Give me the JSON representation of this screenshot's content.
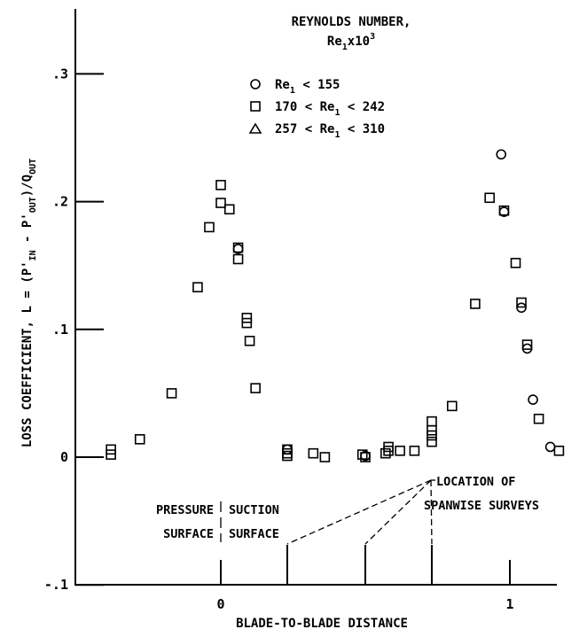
{
  "chart_data": {
    "type": "scatter",
    "xlabel": "BLADE-TO-BLADE DISTANCE",
    "ylabel_parts": {
      "a": "LOSS COEFFICIENT, L = (P'",
      "a_sub": "IN",
      "b": " - P'",
      "b_sub": "OUT",
      "c": ")/Q",
      "c_sub": "OUT"
    },
    "xlim": [
      -0.4,
      1.2
    ],
    "ylim": [
      -0.1,
      0.35
    ],
    "x_ticks": [
      {
        "value": 0,
        "label": "0"
      },
      {
        "value": 1,
        "label": "1"
      }
    ],
    "y_ticks": [
      {
        "value": -0.1,
        "label": "-.1"
      },
      {
        "value": 0,
        "label": "0"
      },
      {
        "value": 0.1,
        "label": ".1"
      },
      {
        "value": 0.2,
        "label": ".2"
      },
      {
        "value": 0.3,
        "label": ".3"
      }
    ],
    "grid": false,
    "legend": {
      "title_line1": "REYNOLDS NUMBER,",
      "title_line2_parts": {
        "a": "Re",
        "sub": "1",
        "b": "x10",
        "sup": "3"
      },
      "position": "top-right",
      "entries": [
        {
          "marker": "circle",
          "parts": {
            "a": "Re",
            "sub": "1",
            "b": " < 155"
          }
        },
        {
          "marker": "square",
          "parts": {
            "a": "170 < Re",
            "sub": "1",
            "b": " < 242"
          }
        },
        {
          "marker": "triangle",
          "parts": {
            "a": "257 < Re",
            "sub": "1",
            "b": " < 310"
          }
        }
      ]
    },
    "series": [
      {
        "name": "Re1 < 155",
        "marker": "circle",
        "points": [
          [
            0.97,
            0.237
          ],
          [
            0.98,
            0.192
          ],
          [
            1.04,
            0.117
          ],
          [
            1.06,
            0.085
          ],
          [
            1.08,
            0.045
          ],
          [
            1.14,
            0.008
          ],
          [
            0.06,
            0.163
          ],
          [
            0.5,
            0.001
          ],
          [
            0.23,
            0.006
          ]
        ]
      },
      {
        "name": "170 < Re1 < 242",
        "marker": "square",
        "points": [
          [
            -0.38,
            0.006
          ],
          [
            -0.38,
            0.002
          ],
          [
            -0.28,
            0.014
          ],
          [
            -0.17,
            0.05
          ],
          [
            -0.08,
            0.133
          ],
          [
            -0.04,
            0.18
          ],
          [
            0.0,
            0.213
          ],
          [
            0.0,
            0.199
          ],
          [
            0.03,
            0.194
          ],
          [
            0.06,
            0.164
          ],
          [
            0.06,
            0.155
          ],
          [
            0.09,
            0.109
          ],
          [
            0.09,
            0.105
          ],
          [
            0.1,
            0.091
          ],
          [
            0.12,
            0.054
          ],
          [
            0.23,
            0.006
          ],
          [
            0.23,
            0.003
          ],
          [
            0.23,
            0.001
          ],
          [
            0.32,
            0.003
          ],
          [
            0.36,
            0.0
          ],
          [
            0.49,
            0.002
          ],
          [
            0.5,
            0.0
          ],
          [
            0.57,
            0.003
          ],
          [
            0.58,
            0.008
          ],
          [
            0.58,
            0.005
          ],
          [
            0.62,
            0.005
          ],
          [
            0.67,
            0.005
          ],
          [
            0.73,
            0.028
          ],
          [
            0.73,
            0.021
          ],
          [
            0.73,
            0.017
          ],
          [
            0.73,
            0.012
          ],
          [
            0.8,
            0.04
          ],
          [
            0.88,
            0.12
          ],
          [
            0.93,
            0.203
          ],
          [
            0.98,
            0.193
          ],
          [
            1.02,
            0.152
          ],
          [
            1.04,
            0.121
          ],
          [
            1.06,
            0.088
          ],
          [
            1.1,
            0.03
          ],
          [
            1.17,
            0.005
          ]
        ]
      },
      {
        "name": "257 < Re1 < 310",
        "marker": "triangle",
        "points": []
      }
    ],
    "annotations": {
      "pressure_line1": "PRESSURE",
      "pressure_line2": "SURFACE",
      "suction_line1": "SUCTION",
      "suction_line2": "SURFACE",
      "location_line1": "LOCATION OF",
      "location_line2": "SPANWISE SURVEYS",
      "survey_locations": [
        0.23,
        0.5,
        0.73
      ],
      "blade_edges": [
        0,
        1
      ]
    }
  }
}
